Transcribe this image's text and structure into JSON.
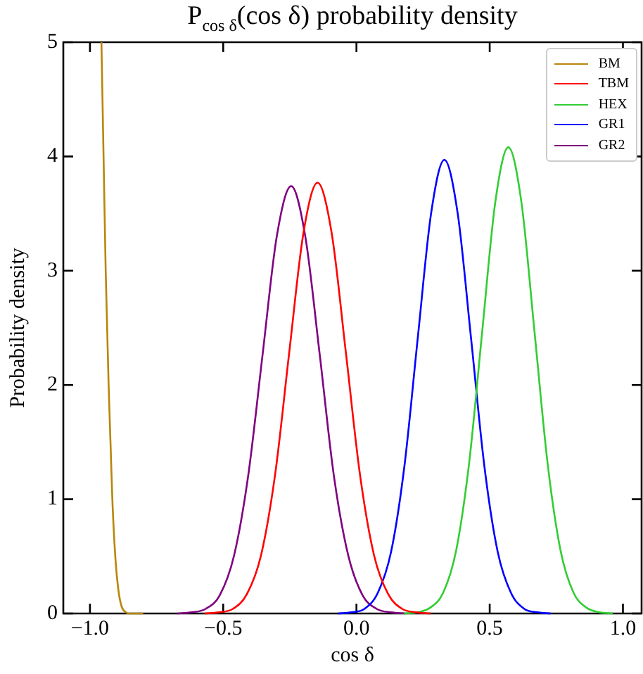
{
  "chart_data": {
    "type": "line",
    "title": "P$_{cos δ}$(cos δ) probability density",
    "xlabel": "cos δ",
    "ylabel": "Probability density",
    "xlim": [
      -1.1,
      1.07
    ],
    "ylim": [
      0,
      5
    ],
    "xticks": [
      {
        "value": -1,
        "label": "−1.0"
      },
      {
        "value": -0.5,
        "label": "−0.5"
      },
      {
        "value": 0,
        "label": "0.0"
      },
      {
        "value": 0.5,
        "label": "0.5"
      },
      {
        "value": 1,
        "label": "1.0"
      }
    ],
    "yticks": [
      0,
      1,
      2,
      3,
      4,
      5
    ],
    "grid": false,
    "legend": "top right",
    "marker": "none",
    "line_style": "solid",
    "series": [
      {
        "name": "BM",
        "color": "#b8860b",
        "x": [
          -0.957,
          -0.953,
          -0.949,
          -0.941,
          -0.93,
          -0.923,
          -0.916,
          -0.905,
          -0.893,
          -0.881,
          -0.865,
          -0.854,
          -0.8
        ],
        "values": [
          5,
          4.5,
          4,
          3,
          2,
          1.5,
          1,
          0.5,
          0.2,
          0.06,
          0.01,
          0,
          0
        ]
      },
      {
        "name": "TBM",
        "color": "#ff0000",
        "x": [
          -0.57,
          -0.517,
          -0.464,
          -0.411,
          -0.358,
          -0.305,
          -0.252,
          -0.199,
          -0.146,
          -0.093,
          -0.04,
          0.013,
          0.066,
          0.119,
          0.172,
          0.225,
          0.278
        ],
        "values": [
          0,
          0.01,
          0.04,
          0.17,
          0.51,
          1.22,
          2.29,
          3.33,
          3.77,
          3.33,
          2.29,
          1.22,
          0.51,
          0.17,
          0.04,
          0.01,
          0
        ]
      },
      {
        "name": "HEX",
        "color": "#32cd32",
        "x": [
          0.178,
          0.227,
          0.276,
          0.325,
          0.374,
          0.423,
          0.472,
          0.521,
          0.57,
          0.619,
          0.668,
          0.717,
          0.766,
          0.815,
          0.864,
          0.913,
          0.962
        ],
        "values": [
          0,
          0.01,
          0.05,
          0.18,
          0.55,
          1.32,
          2.47,
          3.6,
          4.08,
          3.6,
          2.47,
          1.32,
          0.55,
          0.18,
          0.05,
          0.01,
          0
        ]
      },
      {
        "name": "GR1",
        "color": "#0000ff",
        "x": [
          -0.07,
          -0.02,
          0.03,
          0.08,
          0.13,
          0.18,
          0.23,
          0.28,
          0.33,
          0.38,
          0.43,
          0.48,
          0.53,
          0.58,
          0.63,
          0.68,
          0.73
        ],
        "values": [
          0,
          0.01,
          0.04,
          0.18,
          0.54,
          1.29,
          2.41,
          3.5,
          3.97,
          3.5,
          2.41,
          1.29,
          0.54,
          0.18,
          0.04,
          0.01,
          0
        ]
      },
      {
        "name": "GR2",
        "color": "#800080",
        "x": [
          -0.673,
          -0.62,
          -0.566,
          -0.513,
          -0.459,
          -0.406,
          -0.352,
          -0.299,
          -0.245,
          -0.192,
          -0.138,
          -0.085,
          -0.031,
          0.023,
          0.076,
          0.13,
          0.183
        ],
        "values": [
          0,
          0.01,
          0.04,
          0.16,
          0.51,
          1.21,
          2.27,
          3.3,
          3.74,
          3.3,
          2.27,
          1.21,
          0.51,
          0.16,
          0.04,
          0.01,
          0
        ]
      }
    ]
  }
}
